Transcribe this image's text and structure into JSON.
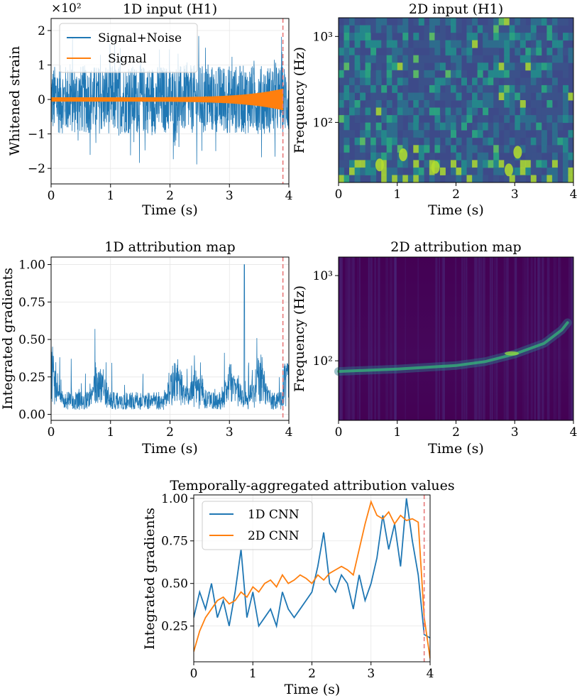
{
  "chart_data": [
    {
      "id": "p1",
      "type": "line",
      "title": "1D input (H1)",
      "xlabel": "Time (s)",
      "ylabel": "Whitened strain",
      "axis_multiplier": "×10²",
      "xlim": [
        0,
        4.0
      ],
      "ylim": [
        -2.45,
        2.35
      ],
      "xticks": [
        0,
        1,
        2,
        3,
        4
      ],
      "xtick_labels": [
        "0",
        "1",
        "2",
        "3",
        "4"
      ],
      "yticks": [
        -2,
        -1,
        0,
        1,
        2
      ],
      "ytick_labels": [
        "−2",
        "−1",
        "0",
        "1",
        "2"
      ],
      "grid": true,
      "merger_marker_x": 3.9,
      "legend_position": "top-left",
      "series": [
        {
          "name": "Signal+Noise",
          "color": "#1f77b4",
          "description": "noise band roughly ±1.0, spikes up to about ±2.2"
        },
        {
          "name": "Signal",
          "color": "#ff7f0e",
          "description": "chirp near 0 whose amplitude grows toward 3.9 s"
        }
      ]
    },
    {
      "id": "p2",
      "type": "heatmap",
      "title": "2D input (H1)",
      "xlabel": "Time (s)",
      "ylabel": "Frequency (Hz)",
      "xlim": [
        0,
        4.0
      ],
      "ylim": [
        20,
        1650
      ],
      "yscale": "log",
      "xticks": [
        0,
        1,
        2,
        3,
        4
      ],
      "xtick_labels": [
        "0",
        "1",
        "2",
        "3",
        "4"
      ],
      "yticks": [
        100,
        1000
      ],
      "ytick_labels": [
        "10²",
        "10³"
      ],
      "colormap": "viridis"
    },
    {
      "id": "p3",
      "type": "line",
      "title": "1D attribution map",
      "xlabel": "Time (s)",
      "ylabel": "Integrated gradients",
      "xlim": [
        0,
        4.0
      ],
      "ylim": [
        -0.04,
        1.05
      ],
      "xticks": [
        0,
        1,
        2,
        3,
        4
      ],
      "xtick_labels": [
        "0",
        "1",
        "2",
        "3",
        "4"
      ],
      "yticks": [
        0,
        0.25,
        0.5,
        0.75,
        1.0
      ],
      "ytick_labels": [
        "0.00",
        "0.25",
        "0.50",
        "0.75",
        "1.00"
      ],
      "grid": true,
      "merger_marker_x": 3.9,
      "series": [
        {
          "name": "1D attribution",
          "color": "#1f77b4",
          "description": "dense spiky values mostly 0.02–0.35, peak 1.00 near 3.25 s"
        }
      ]
    },
    {
      "id": "p4",
      "type": "heatmap",
      "title": "2D attribution map",
      "xlabel": "Time (s)",
      "ylabel": "Frequency (Hz)",
      "xlim": [
        0,
        4.0
      ],
      "ylim": [
        20,
        1650
      ],
      "yscale": "log",
      "xticks": [
        0,
        1,
        2,
        3,
        4
      ],
      "xtick_labels": [
        "0",
        "1",
        "2",
        "3",
        "4"
      ],
      "yticks": [
        100,
        1000
      ],
      "ytick_labels": [
        "10²",
        "10³"
      ],
      "colormap": "viridis",
      "track": {
        "x": [
          0,
          1,
          2,
          2.5,
          3,
          3.5,
          3.8,
          3.9
        ],
        "y": [
          75,
          80,
          88,
          98,
          120,
          160,
          230,
          280
        ]
      }
    },
    {
      "id": "p5",
      "type": "line",
      "title": "Temporally-aggregated attribution values",
      "xlabel": "Time (s)",
      "ylabel": "Integrated gradients",
      "xlim": [
        0,
        4.0
      ],
      "ylim": [
        0.04,
        1.02
      ],
      "xticks": [
        0,
        1,
        2,
        3,
        4
      ],
      "xtick_labels": [
        "0",
        "1",
        "2",
        "3",
        "4"
      ],
      "yticks": [
        0.25,
        0.5,
        0.75,
        1.0
      ],
      "ytick_labels": [
        "0.25",
        "0.50",
        "0.75",
        "1.00"
      ],
      "grid": true,
      "merger_marker_x": 3.9,
      "legend_position": "top-left",
      "series": [
        {
          "name": "1D CNN",
          "color": "#1f77b4",
          "x": [
            0,
            0.1,
            0.2,
            0.3,
            0.4,
            0.5,
            0.6,
            0.7,
            0.8,
            0.9,
            1.0,
            1.1,
            1.2,
            1.3,
            1.4,
            1.5,
            1.6,
            1.7,
            1.8,
            1.9,
            2.0,
            2.1,
            2.2,
            2.3,
            2.4,
            2.5,
            2.6,
            2.7,
            2.8,
            2.9,
            3.0,
            3.1,
            3.2,
            3.3,
            3.4,
            3.5,
            3.6,
            3.7,
            3.8,
            3.9,
            4.0
          ],
          "values": [
            0.3,
            0.45,
            0.35,
            0.5,
            0.3,
            0.4,
            0.25,
            0.45,
            0.7,
            0.3,
            0.45,
            0.25,
            0.3,
            0.35,
            0.25,
            0.45,
            0.35,
            0.3,
            0.35,
            0.4,
            0.45,
            0.6,
            0.8,
            0.5,
            0.45,
            0.55,
            0.5,
            0.35,
            0.55,
            0.4,
            0.5,
            0.65,
            0.9,
            0.7,
            0.85,
            0.6,
            1.0,
            0.75,
            0.55,
            0.2,
            0.18
          ]
        },
        {
          "name": "2D CNN",
          "color": "#ff7f0e",
          "x": [
            0,
            0.1,
            0.2,
            0.3,
            0.4,
            0.5,
            0.6,
            0.7,
            0.8,
            0.9,
            1.0,
            1.1,
            1.2,
            1.3,
            1.4,
            1.5,
            1.6,
            1.7,
            1.8,
            1.9,
            2.0,
            2.1,
            2.2,
            2.3,
            2.4,
            2.5,
            2.6,
            2.7,
            2.8,
            2.9,
            3.0,
            3.1,
            3.2,
            3.3,
            3.4,
            3.5,
            3.6,
            3.7,
            3.8,
            3.9,
            4.0
          ],
          "values": [
            0.1,
            0.22,
            0.3,
            0.35,
            0.4,
            0.42,
            0.38,
            0.4,
            0.45,
            0.42,
            0.48,
            0.45,
            0.5,
            0.52,
            0.48,
            0.55,
            0.5,
            0.52,
            0.55,
            0.53,
            0.5,
            0.55,
            0.52,
            0.56,
            0.58,
            0.6,
            0.58,
            0.55,
            0.7,
            0.85,
            0.98,
            0.9,
            0.88,
            0.92,
            0.85,
            0.9,
            0.87,
            0.88,
            0.86,
            0.3,
            0.06
          ]
        }
      ]
    }
  ]
}
